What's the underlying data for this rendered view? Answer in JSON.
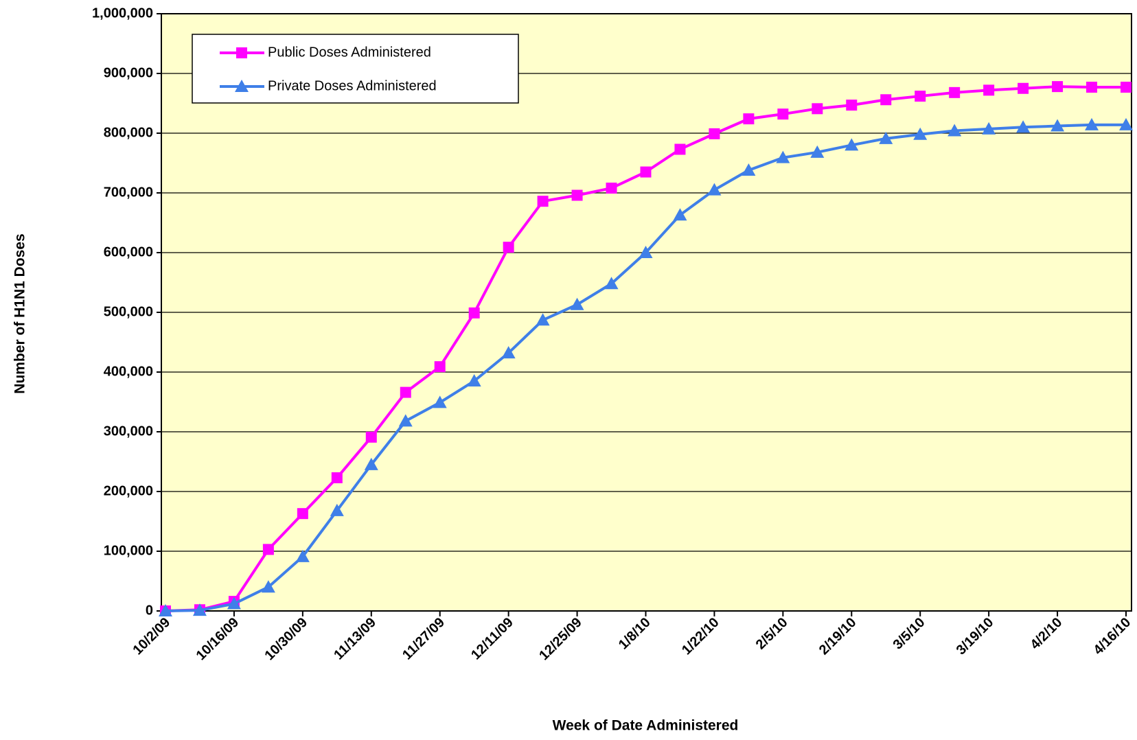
{
  "chart_data": {
    "type": "line",
    "x_label": "Week of Date Administered",
    "y_label": "Number of H1N1 Doses",
    "categories": [
      "10/2/09",
      null,
      "10/16/09",
      null,
      "10/30/09",
      null,
      "11/13/09",
      null,
      "11/27/09",
      null,
      "12/11/09",
      null,
      "12/25/09",
      null,
      "1/8/10",
      null,
      "1/22/10",
      null,
      "2/5/10",
      null,
      "2/19/10",
      null,
      "3/5/10",
      null,
      "3/19/10",
      null,
      "4/2/10",
      null,
      "4/16/10"
    ],
    "series": [
      {
        "name": "Public Doses Administered",
        "color": "#ff00ff",
        "marker": "square",
        "values": [
          0,
          2000,
          16000,
          103000,
          163000,
          223000,
          291000,
          366000,
          409000,
          499000,
          609000,
          686000,
          696000,
          708000,
          735000,
          773000,
          799000,
          824000,
          832000,
          841000,
          847000,
          856000,
          862000,
          868000,
          872000,
          875000,
          878000,
          877000,
          877000
        ]
      },
      {
        "name": "Private Doses Administered",
        "color": "#3f7fe8",
        "marker": "triangle",
        "values": [
          0,
          1000,
          12000,
          40000,
          91000,
          168000,
          245000,
          318000,
          349000,
          385000,
          432000,
          487000,
          513000,
          548000,
          600000,
          663000,
          705000,
          738000,
          759000,
          768000,
          780000,
          791000,
          798000,
          804000,
          807000,
          810000,
          812000,
          814000,
          814000
        ]
      }
    ],
    "ylim": [
      0,
      1000000
    ],
    "yticks": [
      0,
      {
        "value": 100000,
        "label": "100,000"
      },
      {
        "value": 200000,
        "label": "200,000"
      },
      {
        "value": 300000,
        "label": "300,000"
      },
      {
        "value": 400000,
        "label": "400,000"
      },
      {
        "value": 500000,
        "label": "500,000"
      },
      {
        "value": 600000,
        "label": "600,000"
      },
      {
        "value": 700000,
        "label": "700,000"
      },
      {
        "value": 800000,
        "label": "800,000"
      },
      {
        "value": 900000,
        "label": "900,000"
      },
      {
        "value": 1000000,
        "label": "1,000,000"
      }
    ],
    "grid": true,
    "legend": "upper-left",
    "plot_background": "#ffffcc"
  }
}
